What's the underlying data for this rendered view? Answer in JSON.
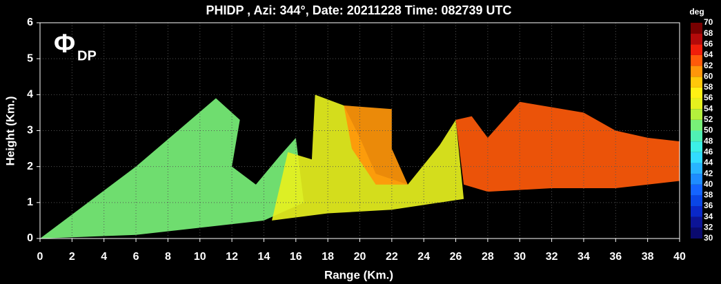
{
  "chart_data": {
    "type": "rhi",
    "title": "PHIDP , Azi: 344°, Date: 20211228 Time: 082739 UTC",
    "annotation": {
      "symbol": "Φ",
      "subscript": "DP"
    },
    "x_label": "Range (Km.)",
    "y_label": "Height (Km.)",
    "xlim": [
      0,
      40
    ],
    "ylim": [
      0,
      6
    ],
    "xticks": [
      0,
      2,
      4,
      6,
      8,
      10,
      12,
      14,
      16,
      18,
      20,
      22,
      24,
      26,
      28,
      30,
      32,
      34,
      36,
      38,
      40
    ],
    "yticks": [
      0,
      1,
      2,
      3,
      4,
      5,
      6
    ],
    "grid": true,
    "colorbar": {
      "label": "deg",
      "ticks": [
        30,
        32,
        34,
        36,
        38,
        40,
        42,
        44,
        46,
        48,
        50,
        52,
        54,
        56,
        58,
        60,
        62,
        64,
        66,
        68,
        70
      ],
      "colors": [
        "#0a0a6e",
        "#0c1496",
        "#0a28c8",
        "#0a46e6",
        "#1464ff",
        "#1e8cff",
        "#28b4ff",
        "#32dcff",
        "#3cf0e6",
        "#50f0b4",
        "#78f078",
        "#b4f03c",
        "#e6f01e",
        "#fff014",
        "#ffc80a",
        "#ff960a",
        "#ff5a0a",
        "#f01e0a",
        "#b40a0a",
        "#780000"
      ]
    },
    "regions": [
      {
        "value": 50,
        "range": [
          0,
          6,
          11,
          12.5,
          12,
          13.5,
          15,
          16,
          16.5,
          14,
          6
        ],
        "height": [
          0,
          2,
          3.9,
          3.3,
          2,
          1.5,
          2.3,
          2.8,
          1,
          0.5,
          0.1
        ]
      },
      {
        "value": 54,
        "range": [
          14.5,
          15.5,
          17,
          17.2,
          19,
          20,
          21,
          23,
          25,
          26,
          26.5,
          22,
          18
        ],
        "height": [
          0.5,
          2.4,
          2.2,
          4,
          3.7,
          2.8,
          1.8,
          1.5,
          2.6,
          3.3,
          1.1,
          0.8,
          0.7
        ]
      },
      {
        "value": 60,
        "range": [
          19,
          22,
          22,
          23,
          21,
          19.5
        ],
        "height": [
          3.7,
          3.6,
          2.5,
          1.5,
          1.5,
          2.5
        ]
      },
      {
        "value": 62,
        "range": [
          26,
          27,
          28,
          30,
          34,
          36,
          38,
          40,
          40,
          36,
          32,
          28,
          26.5
        ],
        "height": [
          3.3,
          3.4,
          2.8,
          3.8,
          3.5,
          3,
          2.8,
          2.7,
          1.6,
          1.4,
          1.4,
          1.3,
          1.5
        ]
      }
    ]
  }
}
